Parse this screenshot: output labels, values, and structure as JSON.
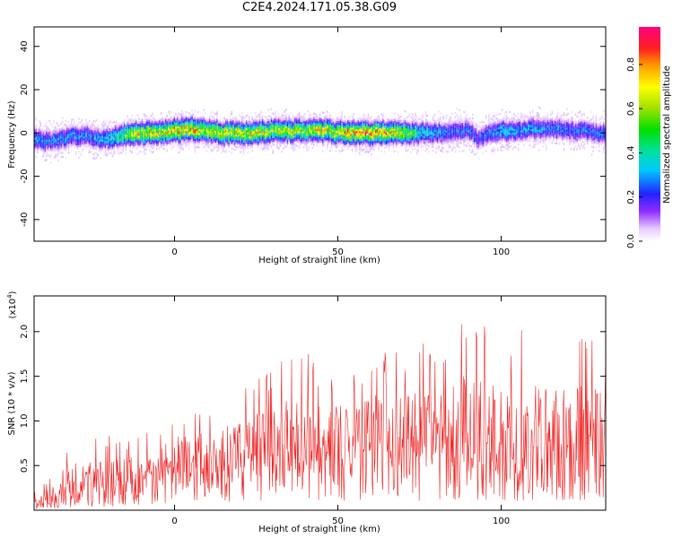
{
  "title": "C2E4.2024.171.05.38.G09",
  "chart_data": [
    {
      "type": "heatmap",
      "xlabel": "Height of straight line (km)",
      "ylabel": "Frequency (Hz)",
      "xlim": [
        -43,
        132
      ],
      "ylim": [
        -50,
        49
      ],
      "xticks": [
        0,
        50,
        100
      ],
      "yticks": [
        40,
        20,
        0,
        -20,
        -40
      ],
      "colorbar": {
        "label": "Normalized spectral amplitude",
        "range": [
          0.0,
          0.97
        ],
        "ticks": [
          0.0,
          0.2,
          0.4,
          0.6,
          0.8
        ],
        "tick_labels": [
          "0.0",
          "0.2",
          "0.4",
          "0.6",
          "0.8"
        ]
      },
      "ridge": {
        "description_points_x": [
          -43,
          -38,
          -33,
          -28,
          -22,
          -17,
          -12,
          -5,
          0,
          5,
          10,
          15,
          20,
          25,
          30,
          35,
          40,
          45,
          50,
          55,
          60,
          65,
          70,
          75,
          80,
          85,
          90,
          93,
          96,
          100,
          105,
          110,
          115,
          120,
          125,
          130,
          132
        ],
        "center_hz": [
          -3,
          -4,
          -2,
          -1,
          -3,
          -1,
          0,
          0,
          1,
          2,
          1,
          0,
          0,
          0,
          1,
          1,
          1,
          1,
          0,
          0,
          0,
          0,
          0,
          0,
          0,
          1,
          1,
          -3,
          0,
          1,
          1,
          2,
          2,
          1,
          1,
          0,
          -1
        ],
        "peak_amplitude": [
          0.35,
          0.3,
          0.35,
          0.3,
          0.35,
          0.5,
          0.8,
          0.75,
          0.85,
          0.9,
          0.7,
          0.8,
          0.75,
          0.8,
          0.7,
          0.75,
          0.7,
          0.8,
          0.75,
          0.97,
          0.95,
          0.85,
          0.7,
          0.45,
          0.35,
          0.3,
          0.3,
          0.25,
          0.3,
          0.4,
          0.35,
          0.35,
          0.3,
          0.3,
          0.3,
          0.3,
          0.3
        ]
      }
    },
    {
      "type": "line",
      "xlabel": "Height of straight line (km)",
      "ylabel": "SNR (10 * v/v)",
      "y_multiplier": "(x10",
      "y_multiplier_exp": "4",
      "y_multiplier_close": ")",
      "xlim": [
        -43,
        132
      ],
      "ylim": [
        0,
        2.4
      ],
      "xticks": [
        0,
        50,
        100
      ],
      "yticks": [
        0.5,
        1.0,
        1.5,
        2.0
      ],
      "ytick_labels": [
        "0.5",
        "1.0",
        "1.5",
        "2.0"
      ],
      "color": "#ee2222",
      "envelope": {
        "x": [
          -43,
          -35,
          -30,
          -25,
          -20,
          -15,
          -10,
          -5,
          0,
          5,
          10,
          15,
          20,
          25,
          30,
          35,
          40,
          45,
          50,
          55,
          60,
          65,
          70,
          75,
          80,
          85,
          90,
          95,
          100,
          105,
          110,
          115,
          120,
          125,
          130,
          132
        ],
        "baseline": [
          0.05,
          0.1,
          0.2,
          0.25,
          0.25,
          0.3,
          0.4,
          0.45,
          0.5,
          0.5,
          0.55,
          0.55,
          0.6,
          0.6,
          0.65,
          0.65,
          0.7,
          0.7,
          0.7,
          0.72,
          0.75,
          0.75,
          0.75,
          0.7,
          0.7,
          0.7,
          0.7,
          0.7,
          0.7,
          0.65,
          0.7,
          0.7,
          0.7,
          0.7,
          0.7,
          0.7
        ],
        "peak": [
          0.2,
          0.5,
          0.85,
          0.85,
          0.85,
          0.8,
          0.85,
          0.9,
          1.1,
          1.1,
          1.15,
          1.25,
          1.3,
          1.5,
          1.6,
          1.75,
          1.85,
          1.5,
          1.55,
          1.6,
          1.7,
          1.8,
          1.75,
          1.9,
          1.75,
          2.05,
          2.35,
          2.05,
          2.1,
          2.05,
          2.05,
          1.9,
          1.9,
          1.95,
          1.95,
          1.7
        ]
      }
    }
  ]
}
